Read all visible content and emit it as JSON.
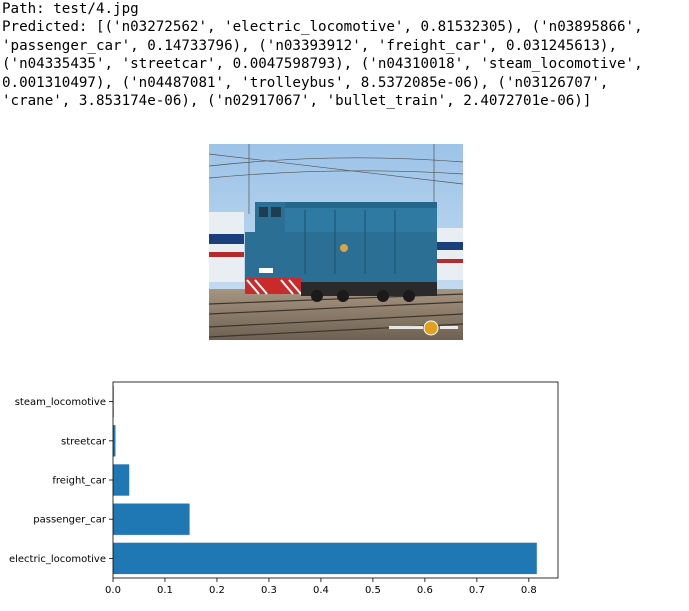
{
  "output": {
    "path_line": "Path: test/4.jpg",
    "predicted_lines": [
      "Predicted: [('n03272562', 'electric_locomotive', 0.81532305), ('n03895866',",
      "'passenger_car', 0.14733796), ('n03393912', 'freight_car', 0.031245613),",
      "('n04335435', 'streetcar', 0.0047598793), ('n04310018', 'steam_locomotive',",
      "0.001310497), ('n04487081', 'trolleybus', 8.5372085e-06), ('n03126707',",
      "'crane', 3.853174e-06), ('n02917067', 'bullet_train', 2.4072701e-06)]"
    ]
  },
  "photo": {
    "subject": "blue diesel locomotive in rail yard",
    "watermark": "trainsc 火 com"
  },
  "colors": {
    "bar": "#1f77b4",
    "sky": "#a9c9e6",
    "locomotive": "#2c6f94"
  },
  "chart_data": {
    "type": "bar",
    "orientation": "horizontal",
    "categories": [
      "electric_locomotive",
      "passenger_car",
      "freight_car",
      "streetcar",
      "steam_locomotive"
    ],
    "values": [
      0.81532305,
      0.14733796,
      0.031245613,
      0.0047598793,
      0.001310497
    ],
    "xlim": [
      0,
      0.8561
    ],
    "xticks": [
      "0.0",
      "0.1",
      "0.2",
      "0.3",
      "0.4",
      "0.5",
      "0.6",
      "0.7",
      "0.8"
    ],
    "grid": false,
    "legend": "none"
  }
}
